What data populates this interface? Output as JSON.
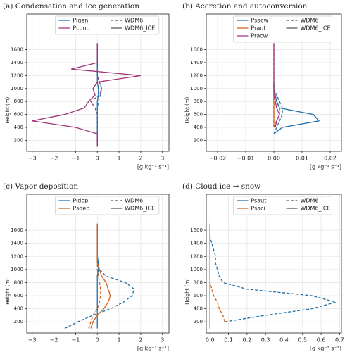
{
  "chart_data": [
    {
      "type": "line",
      "title": "(a) Condensation and ice generation",
      "xlabel": "[g kg⁻¹ s⁻¹]",
      "ylabel": "Height (m)",
      "y": [
        100,
        200,
        300,
        400,
        500,
        600,
        700,
        800,
        900,
        1000,
        1100,
        1200,
        1300,
        1400,
        1500,
        1600,
        1700
      ],
      "runs": [
        {
          "name": "WDM6",
          "linestyle": "dashed"
        },
        {
          "name": "WDM6_ICE",
          "linestyle": "solid"
        }
      ],
      "series": [
        {
          "name": "Pigen",
          "color": "#1f6fa8",
          "values": [
            [
              0,
              0,
              0,
              0,
              0,
              0,
              0,
              0.05,
              0.15,
              0.2,
              0.1,
              0,
              0,
              0,
              0,
              0,
              0
            ],
            [
              0,
              0,
              0,
              0,
              0,
              0,
              0,
              0,
              0.05,
              0.05,
              0,
              0,
              0,
              0,
              0,
              0,
              0
            ]
          ]
        },
        {
          "name": "Pcond",
          "color": "#a2357a",
          "values": [
            [
              0,
              0,
              0,
              0,
              0,
              0,
              -0.1,
              -0.3,
              0.1,
              0.2,
              0.1,
              0,
              0,
              0,
              0,
              0,
              0
            ],
            [
              0,
              0,
              0,
              -1,
              -3,
              -1.5,
              -0.6,
              -0.4,
              -0.1,
              -0.2,
              0,
              2,
              -1.2,
              0,
              0,
              0,
              0
            ]
          ]
        }
      ],
      "xlim": [
        -3.25,
        3.3
      ],
      "xticks": [
        {
          "value": -3,
          "label": "−3"
        },
        {
          "value": -2,
          "label": "−2"
        },
        {
          "value": -1,
          "label": "−1"
        },
        0,
        1,
        2,
        3
      ],
      "ylim": [
        30,
        2150
      ],
      "yticks": [
        200,
        400,
        600,
        800,
        1000,
        1200,
        1400,
        1600
      ],
      "grid": true,
      "legend": "upper center"
    },
    {
      "type": "line",
      "title": "(b) Accretion and autoconversion",
      "xlabel": "[g kg⁻¹ s⁻¹]",
      "ylabel": "Height (m)",
      "y": [
        100,
        200,
        300,
        400,
        500,
        600,
        700,
        800,
        900,
        1000,
        1100,
        1200,
        1300,
        1400,
        1500,
        1600,
        1700
      ],
      "runs": [
        {
          "name": "WDM6",
          "linestyle": "dashed"
        },
        {
          "name": "WDM6_ICE",
          "linestyle": "solid"
        }
      ],
      "series": [
        {
          "name": "Psacw",
          "color": "#1f6fa8",
          "values": [
            [
              null,
              null,
              0,
              0.001,
              0.002,
              0.003,
              0.003,
              0.002,
              0.001,
              0,
              0,
              null,
              null,
              null,
              null,
              null,
              null
            ],
            [
              null,
              null,
              0,
              0.003,
              0.016,
              0.014,
              0.002,
              0.001,
              0.0005,
              0,
              0,
              null,
              null,
              null,
              null,
              null,
              null
            ]
          ]
        },
        {
          "name": "Praut",
          "color": "#d2601a",
          "values": [
            [
              null,
              null,
              null,
              0,
              0,
              0,
              0,
              0,
              0,
              0,
              null,
              null,
              null,
              null,
              null,
              null,
              null
            ],
            [
              null,
              null,
              null,
              0,
              0,
              0,
              0,
              0,
              0,
              0,
              null,
              null,
              null,
              null,
              null,
              null,
              null
            ]
          ]
        },
        {
          "name": "Pracw",
          "color": "#a2357a",
          "values": [
            [
              null,
              null,
              null,
              0,
              0.001,
              0.002,
              0.002,
              0.001,
              0.0005,
              0,
              0,
              0,
              0,
              0,
              0,
              0,
              0
            ],
            [
              null,
              null,
              null,
              0.0005,
              0.001,
              0.002,
              0.001,
              0.0005,
              0,
              0,
              0,
              0,
              0,
              0,
              0,
              0,
              0
            ]
          ]
        }
      ],
      "xlim": [
        -0.024,
        0.024
      ],
      "xticks": [
        {
          "value": -0.02,
          "label": "−0.02"
        },
        {
          "value": -0.01,
          "label": "−0.01"
        },
        {
          "value": 0,
          "label": "0.00"
        },
        0.01,
        0.02
      ],
      "ylim": [
        30,
        2150
      ],
      "yticks": [
        200,
        400,
        600,
        800,
        1000,
        1200,
        1400,
        1600
      ],
      "grid": true,
      "legend": "upper center"
    },
    {
      "type": "line",
      "title": "(c) Vapor deposition",
      "xlabel": "[g kg⁻¹ s⁻¹]",
      "ylabel": "Height (m)",
      "y": [
        100,
        200,
        300,
        400,
        500,
        600,
        700,
        800,
        900,
        1000,
        1100,
        1200,
        1300,
        1400,
        1500,
        1600,
        1700
      ],
      "runs": [
        {
          "name": "WDM6",
          "linestyle": "dashed"
        },
        {
          "name": "WDM6_ICE",
          "linestyle": "solid"
        }
      ],
      "series": [
        {
          "name": "Pidep",
          "color": "#1f6fa8",
          "values": [
            [
              -1.5,
              -0.9,
              -0.2,
              0.6,
              1.2,
              1.6,
              1.7,
              1.3,
              0.4,
              0.1,
              0,
              0,
              0,
              0,
              0,
              0,
              0
            ],
            [
              0,
              0,
              0,
              0,
              0,
              0,
              0,
              0,
              0,
              0.05,
              0.05,
              0,
              0,
              0,
              0,
              0,
              0
            ]
          ]
        },
        {
          "name": "Psdep",
          "color": "#d2601a",
          "values": [
            [
              -0.4,
              -0.3,
              -0.2,
              0,
              0.1,
              0.15,
              0.15,
              0.1,
              0.05,
              0,
              0,
              0,
              0,
              0,
              0,
              0,
              0
            ],
            [
              -0.3,
              -0.2,
              0,
              0.3,
              0.5,
              0.6,
              0.5,
              0.4,
              0.2,
              0.1,
              0,
              0,
              0,
              0,
              0,
              0,
              0
            ]
          ]
        }
      ],
      "xlim": [
        -3.25,
        3.3
      ],
      "xticks": [
        {
          "value": -3,
          "label": "−3"
        },
        {
          "value": -2,
          "label": "−2"
        },
        {
          "value": -1,
          "label": "−1"
        },
        0,
        1,
        2,
        3
      ],
      "ylim": [
        30,
        2150
      ],
      "yticks": [
        200,
        400,
        600,
        800,
        1000,
        1200,
        1400,
        1600
      ],
      "grid": true,
      "legend": "upper center"
    },
    {
      "type": "line",
      "title": "(d) Cloud ice → snow",
      "xlabel": "[g kg⁻¹ s⁻¹]",
      "ylabel": "Height (m)",
      "y": [
        100,
        200,
        300,
        400,
        500,
        600,
        700,
        800,
        900,
        1000,
        1100,
        1200,
        1300,
        1400,
        1500,
        1600,
        1700
      ],
      "runs": [
        {
          "name": "WDM6",
          "linestyle": "dashed"
        },
        {
          "name": "WDM6_ICE",
          "linestyle": "solid"
        }
      ],
      "series": [
        {
          "name": "Psaut",
          "color": "#1f6fa8",
          "values": [
            [
              null,
              0.08,
              0.3,
              0.55,
              0.68,
              0.55,
              0.2,
              0.07,
              0.05,
              0.04,
              0.03,
              0.03,
              0.02,
              0.01,
              0,
              null,
              null
            ],
            [
              0,
              0,
              0,
              0,
              0,
              0,
              0,
              0,
              0,
              0,
              0,
              0,
              0,
              0,
              0,
              0,
              0
            ]
          ]
        },
        {
          "name": "Psaci",
          "color": "#d2601a",
          "values": [
            [
              null,
              0.08,
              0.07,
              0.05,
              0.04,
              0.02,
              0.01,
              0,
              0,
              0,
              0,
              0,
              0,
              0,
              0,
              0,
              0
            ],
            [
              0,
              0,
              0,
              0,
              0,
              0,
              0,
              0,
              0,
              0,
              0,
              0,
              0,
              0,
              0,
              0,
              0
            ]
          ]
        }
      ],
      "xlim": [
        -0.02,
        0.71
      ],
      "xticks": [
        {
          "value": 0,
          "label": "0.0"
        },
        0.1,
        0.2,
        0.3,
        0.4,
        0.5,
        0.6,
        0.7
      ],
      "ylim": [
        30,
        2150
      ],
      "yticks": [
        200,
        400,
        600,
        800,
        1000,
        1200,
        1400,
        1600
      ],
      "grid": true,
      "legend": "upper center"
    }
  ]
}
